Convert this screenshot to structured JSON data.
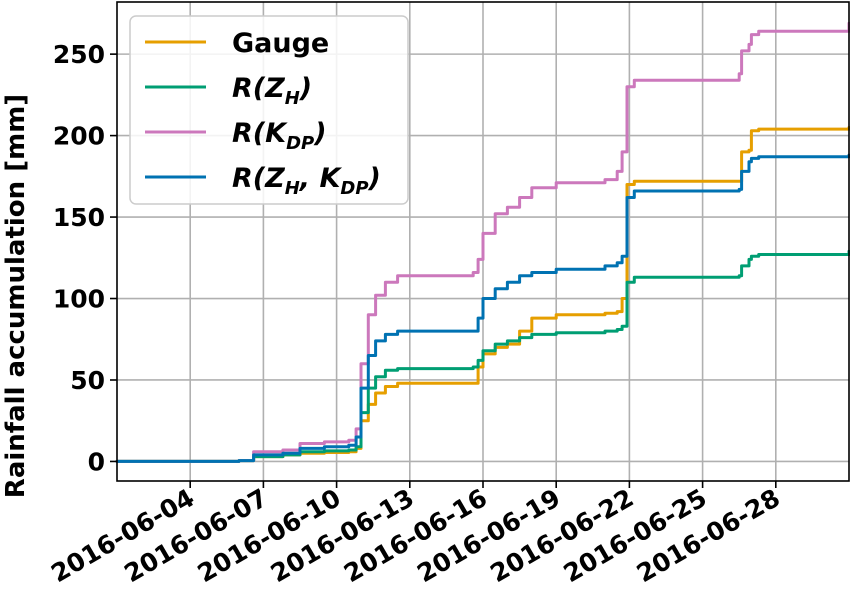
{
  "chart_data": {
    "type": "line",
    "title": "",
    "xlabel": "",
    "ylabel": "Rainfall accumulation [mm]",
    "xlim": [
      "2016-06-01",
      "2016-07-01"
    ],
    "ylim": [
      -12,
      282
    ],
    "grid": true,
    "legend_position": "upper-left",
    "xticks": [
      "2016-06-04",
      "2016-06-07",
      "2016-06-10",
      "2016-06-13",
      "2016-06-16",
      "2016-06-19",
      "2016-06-22",
      "2016-06-25",
      "2016-06-28"
    ],
    "yticks": [
      0,
      50,
      100,
      150,
      200,
      250
    ],
    "series": [
      {
        "name": "Gauge",
        "legend": {
          "base": "Gauge",
          "sub": ""
        },
        "color": "#e69f00",
        "x": [
          "2016-06-01",
          "2016-06-06",
          "2016-06-06.6",
          "2016-06-07.8",
          "2016-06-08.5",
          "2016-06-09.5",
          "2016-06-10.5",
          "2016-06-10.8",
          "2016-06-11.0",
          "2016-06-11.3",
          "2016-06-11.6",
          "2016-06-12.0",
          "2016-06-12.5",
          "2016-06-15.6",
          "2016-06-15.8",
          "2016-06-16.0",
          "2016-06-16.5",
          "2016-06-17.0",
          "2016-06-17.5",
          "2016-06-18.0",
          "2016-06-19.0",
          "2016-06-21.0",
          "2016-06-21.5",
          "2016-06-21.7",
          "2016-06-21.9",
          "2016-06-22.2",
          "2016-06-26.5",
          "2016-06-26.6",
          "2016-06-26.9",
          "2016-06-27.0",
          "2016-06-27.3",
          "2016-07-01"
        ],
        "y": [
          0,
          0.5,
          3,
          4,
          5,
          5.5,
          6,
          8,
          25,
          35,
          42,
          46,
          48,
          48,
          58,
          66,
          70,
          72,
          80,
          88,
          90,
          91,
          92,
          100,
          170,
          172,
          172,
          190,
          191,
          203,
          204,
          205
        ]
      },
      {
        "name": "R(ZH)",
        "legend": {
          "base": "R(Z",
          "sub": "H",
          "tail": ")"
        },
        "color": "#009e73",
        "x": [
          "2016-06-01",
          "2016-06-06",
          "2016-06-06.6",
          "2016-06-07.8",
          "2016-06-08.5",
          "2016-06-09.5",
          "2016-06-10.5",
          "2016-06-10.8",
          "2016-06-11.0",
          "2016-06-11.3",
          "2016-06-11.6",
          "2016-06-12.0",
          "2016-06-12.5",
          "2016-06-15.6",
          "2016-06-15.8",
          "2016-06-16.0",
          "2016-06-16.5",
          "2016-06-17.0",
          "2016-06-17.5",
          "2016-06-18.0",
          "2016-06-19.0",
          "2016-06-21.0",
          "2016-06-21.5",
          "2016-06-21.7",
          "2016-06-21.9",
          "2016-06-22.2",
          "2016-06-26.5",
          "2016-06-26.6",
          "2016-06-26.9",
          "2016-06-27.0",
          "2016-06-27.3",
          "2016-07-01"
        ],
        "y": [
          0,
          0.5,
          3,
          4,
          6,
          6.5,
          7,
          9,
          30,
          45,
          52,
          56,
          57,
          58,
          62,
          68,
          72,
          74,
          76,
          78,
          79,
          80,
          81,
          83,
          110,
          113,
          114,
          120,
          124,
          126,
          127,
          129
        ]
      },
      {
        "name": "R(KDP)",
        "legend": {
          "base": "R(K",
          "sub": "DP",
          "tail": ")"
        },
        "color": "#cc78bc",
        "x": [
          "2016-06-01",
          "2016-06-06",
          "2016-06-06.6",
          "2016-06-07.8",
          "2016-06-08.5",
          "2016-06-09.5",
          "2016-06-10.5",
          "2016-06-10.8",
          "2016-06-11.0",
          "2016-06-11.3",
          "2016-06-11.6",
          "2016-06-12.0",
          "2016-06-12.5",
          "2016-06-15.6",
          "2016-06-15.8",
          "2016-06-16.0",
          "2016-06-16.5",
          "2016-06-17.0",
          "2016-06-17.5",
          "2016-06-18.0",
          "2016-06-19.0",
          "2016-06-21.0",
          "2016-06-21.5",
          "2016-06-21.7",
          "2016-06-21.9",
          "2016-06-22.2",
          "2016-06-26.5",
          "2016-06-26.6",
          "2016-06-26.9",
          "2016-06-27.0",
          "2016-06-27.3",
          "2016-07-01"
        ],
        "y": [
          0,
          0.5,
          6,
          7,
          11,
          12,
          13,
          20,
          60,
          90,
          102,
          110,
          114,
          116,
          124,
          140,
          152,
          156,
          162,
          168,
          171,
          173,
          178,
          190,
          230,
          234,
          238,
          252,
          256,
          262,
          264,
          269
        ]
      },
      {
        "name": "R(ZH,KDP)",
        "legend": {
          "base": "R(Z",
          "sub": "H",
          "mid": ", K",
          "sub2": "DP",
          "tail": ")"
        },
        "color": "#0072b2",
        "x": [
          "2016-06-01",
          "2016-06-06",
          "2016-06-06.6",
          "2016-06-07.8",
          "2016-06-08.5",
          "2016-06-09.5",
          "2016-06-10.5",
          "2016-06-10.8",
          "2016-06-11.0",
          "2016-06-11.3",
          "2016-06-11.6",
          "2016-06-12.0",
          "2016-06-12.5",
          "2016-06-15.6",
          "2016-06-15.8",
          "2016-06-16.0",
          "2016-06-16.5",
          "2016-06-17.0",
          "2016-06-17.5",
          "2016-06-18.0",
          "2016-06-19.0",
          "2016-06-21.0",
          "2016-06-21.5",
          "2016-06-21.7",
          "2016-06-21.9",
          "2016-06-22.2",
          "2016-06-26.5",
          "2016-06-26.6",
          "2016-06-26.9",
          "2016-06-27.0",
          "2016-06-27.3",
          "2016-07-01"
        ],
        "y": [
          0,
          0.5,
          4,
          5,
          8,
          9,
          10,
          15,
          45,
          65,
          74,
          78,
          80,
          80,
          88,
          100,
          106,
          110,
          114,
          116,
          118,
          120,
          122,
          126,
          162,
          166,
          167,
          178,
          184,
          186,
          187,
          188
        ]
      }
    ]
  }
}
